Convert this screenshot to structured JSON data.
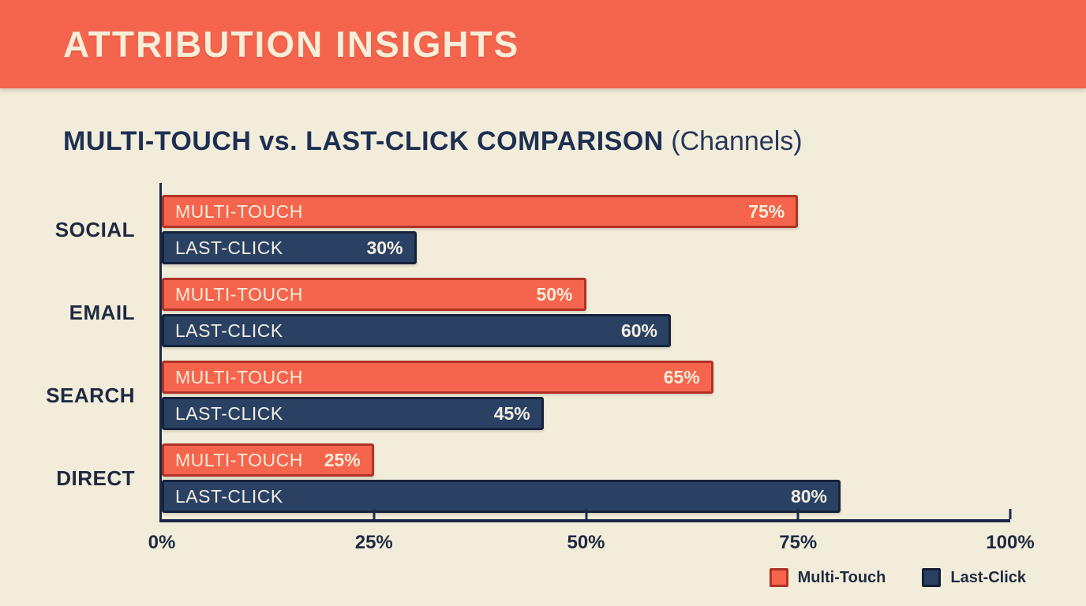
{
  "header": {
    "title": "ATTRIBUTION INSIGHTS",
    "background": "#f5654d",
    "text_color": "#f6eed8"
  },
  "chart_title": {
    "main": "MULTI-TOUCH vs. LAST-CLICK COMPARISON",
    "suffix": " (Channels)"
  },
  "chart_data": {
    "type": "bar",
    "orientation": "horizontal",
    "title": "MULTI-TOUCH vs. LAST-CLICK COMPARISON (Channels)",
    "categories": [
      "SOCIAL",
      "EMAIL",
      "SEARCH",
      "DIRECT"
    ],
    "series": [
      {
        "name": "Multi-Touch",
        "bar_label": "MULTI-TOUCH",
        "values": [
          75,
          50,
          65,
          25
        ],
        "fill": "#f5654d",
        "border": "#b03226",
        "text_color": "#f8ecd9"
      },
      {
        "name": "Last-Click",
        "bar_label": "LAST-CLICK",
        "values": [
          30,
          60,
          45,
          80
        ],
        "fill": "#2a4164",
        "border": "#15223c",
        "text_color": "#f2efe2"
      }
    ],
    "value_suffix": "%",
    "x_ticks": [
      "0%",
      "25%",
      "50%",
      "75%",
      "100%"
    ],
    "x_tick_positions": [
      0,
      25,
      50,
      75,
      100
    ],
    "xlim": [
      0,
      100
    ],
    "grid": false,
    "legend_position": "bottom-right"
  },
  "legend": {
    "items": [
      {
        "label": "Multi-Touch",
        "color": "#f5654d",
        "border": "#b03226"
      },
      {
        "label": "Last-Click",
        "color": "#2a4164",
        "border": "#131f35"
      }
    ]
  },
  "colors": {
    "background": "#f2eddb",
    "axis": "#1b2a47",
    "title_text": "#1e2f52",
    "label_text": "#1f2940"
  }
}
